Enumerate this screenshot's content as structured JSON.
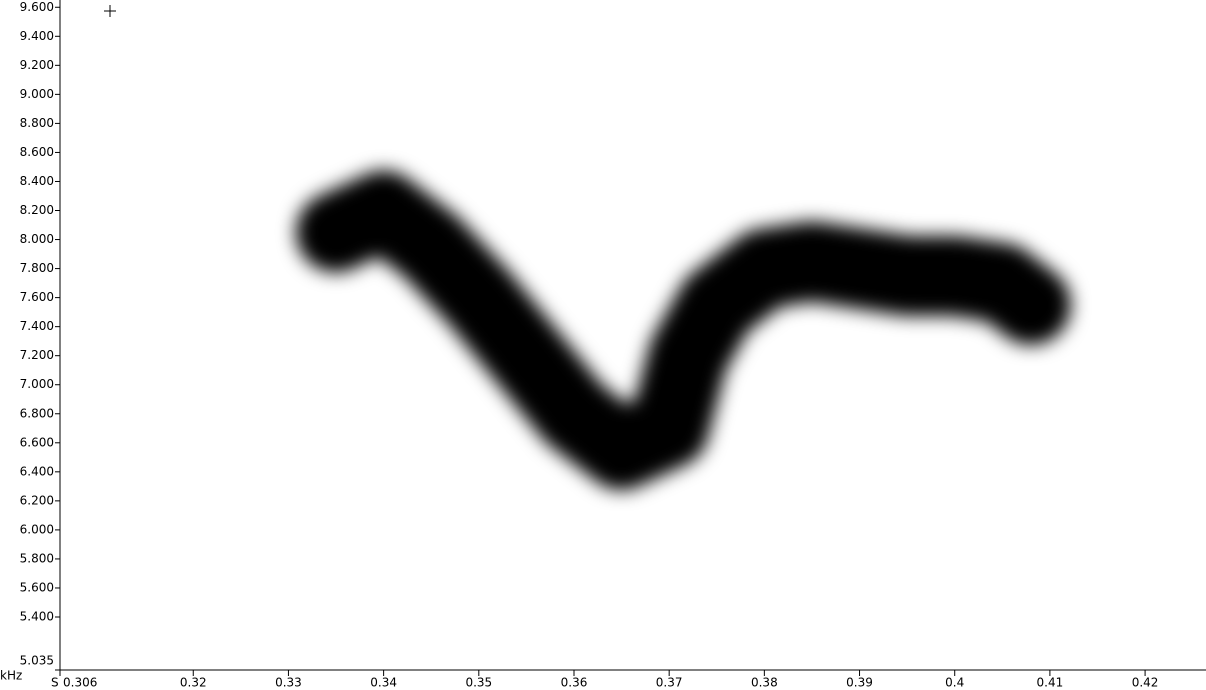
{
  "chart_data": {
    "type": "line",
    "x_label": "S",
    "y_label": "kHz",
    "x": [
      0.335,
      0.34,
      0.345,
      0.35,
      0.355,
      0.36,
      0.365,
      0.37,
      0.372,
      0.375,
      0.38,
      0.385,
      0.39,
      0.395,
      0.4,
      0.405,
      0.408
    ],
    "series": [
      {
        "color": "#000000",
        "values": [
          8.05,
          8.2,
          7.95,
          7.6,
          7.2,
          6.8,
          6.55,
          6.7,
          7.2,
          7.55,
          7.8,
          7.85,
          7.8,
          7.75,
          7.75,
          7.7,
          7.55
        ]
      }
    ],
    "xlim": [
      0.306,
      0.4264
    ],
    "ylim": [
      5.035,
      9.65
    ],
    "xticks": [
      0.306,
      0.32,
      0.33,
      0.34,
      0.35,
      0.36,
      0.37,
      0.38,
      0.39,
      0.4,
      0.41,
      0.42
    ],
    "yticks": [
      {
        "value": 5.035,
        "label": "5.035"
      },
      {
        "value": 5.4,
        "label": "5.400"
      },
      {
        "value": 5.6,
        "label": "5.600"
      },
      {
        "value": 5.8,
        "label": "5.800"
      },
      {
        "value": 6.0,
        "label": "6.000"
      },
      {
        "value": 6.2,
        "label": "6.200"
      },
      {
        "value": 6.4,
        "label": "6.400"
      },
      {
        "value": 6.6,
        "label": "6.600"
      },
      {
        "value": 6.8,
        "label": "6.800"
      },
      {
        "value": 7.0,
        "label": "7.000"
      },
      {
        "value": 7.2,
        "label": "7.200"
      },
      {
        "value": 7.4,
        "label": "7.400"
      },
      {
        "value": 7.6,
        "label": "7.600"
      },
      {
        "value": 7.8,
        "label": "7.800"
      },
      {
        "value": 8.0,
        "label": "8.000"
      },
      {
        "value": 8.2,
        "label": "8.200"
      },
      {
        "value": 8.4,
        "label": "8.400"
      },
      {
        "value": 8.6,
        "label": "8.600"
      },
      {
        "value": 8.8,
        "label": "8.800"
      },
      {
        "value": 9.0,
        "label": "9.000"
      },
      {
        "value": 9.2,
        "label": "9.200"
      },
      {
        "value": 9.4,
        "label": "9.400"
      },
      {
        "value": 9.6,
        "label": "9.600"
      }
    ]
  }
}
